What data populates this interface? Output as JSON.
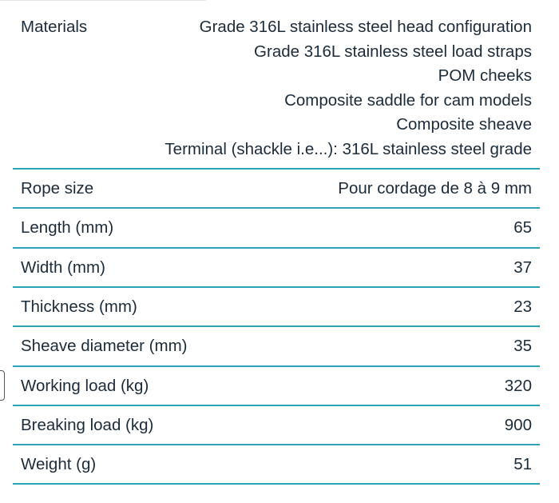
{
  "table": {
    "rows": [
      {
        "label": "Materials",
        "value": [
          "Grade 316L stainless steel head configuration",
          "Grade 316L stainless steel load straps",
          "POM cheeks",
          "Composite saddle for cam models",
          "Composite sheave",
          "Terminal (shackle i.e...): 316L stainless steel grade"
        ]
      },
      {
        "label": "Rope size",
        "value": "Pour cordage de 8 à 9 mm"
      },
      {
        "label": "Length (mm)",
        "value": 65
      },
      {
        "label": "Width (mm)",
        "value": 37
      },
      {
        "label": "Thickness (mm)",
        "value": 23
      },
      {
        "label": "Sheave diameter (mm)",
        "value": 35
      },
      {
        "label": "Working load (kg)",
        "value": 320
      },
      {
        "label": "Breaking load (kg)",
        "value": 900
      },
      {
        "label": "Weight (g)",
        "value": 51
      }
    ]
  }
}
